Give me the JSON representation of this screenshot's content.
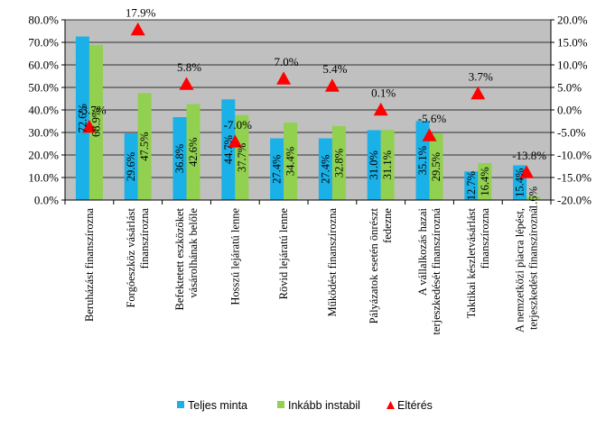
{
  "chart_data": {
    "type": "bar",
    "categories": [
      [
        "Beruházást finanszírozna"
      ],
      [
        "Forgóeszköz vásárlást",
        "finanszírozna"
      ],
      [
        "Befektetett eszközöket",
        "vásárolhának belőle"
      ],
      [
        "Hosszú lejáratú lenne"
      ],
      [
        "Rövid lejáratú lenne"
      ],
      [
        "Működést finanszírozna"
      ],
      [
        "Pályázatok esetén önrészt",
        "fedezne"
      ],
      [
        "A vállalkozás hazai",
        "terjeszkedését finanszírozná"
      ],
      [
        "Taktikai készletvásárlást",
        "finanszírozna"
      ],
      [
        "A nemzetközi piacra lépést,",
        "terjeszkedést finanszírozná"
      ]
    ],
    "series": [
      {
        "name": "Teljes minta",
        "color": "#1ab0e8",
        "axis": "left",
        "values": [
          72.6,
          29.6,
          36.8,
          44.7,
          27.4,
          27.4,
          31.0,
          35.1,
          12.7,
          15.4
        ],
        "labels": [
          "72.6%",
          "29.6%",
          "36.8%",
          "44.7%",
          "27.4%",
          "27.4%",
          "31.0%",
          "35.1%",
          "12.7%",
          "15.4%"
        ]
      },
      {
        "name": "Inkább instabil",
        "color": "#92d050",
        "axis": "left",
        "values": [
          68.9,
          47.5,
          42.6,
          37.7,
          34.4,
          32.8,
          31.1,
          29.5,
          16.4,
          1.6
        ],
        "labels": [
          "68.9%",
          "47.5%",
          "42.6%",
          "37.7%",
          "34.4%",
          "32.8%",
          "31.1%",
          "29.5%",
          "16.4%",
          "1.6%"
        ]
      },
      {
        "name": "Eltérés",
        "color": "#ff0000",
        "axis": "right",
        "marker": "triangle",
        "values": [
          -3.7,
          17.9,
          5.8,
          -7.0,
          7.0,
          5.4,
          0.1,
          -5.6,
          3.7,
          -13.8
        ],
        "labels": [
          "-3.7%",
          "17.9%",
          "5.8%",
          "-7.0%",
          "7.0%",
          "5.4%",
          "0.1%",
          "-5.6%",
          "3.7%",
          "-13.8%"
        ]
      }
    ],
    "ylim_left": [
      0,
      80
    ],
    "yticks_left": [
      "0.0%",
      "10.0%",
      "20.0%",
      "30.0%",
      "40.0%",
      "50.0%",
      "60.0%",
      "70.0%",
      "80.0%"
    ],
    "ylim_right": [
      -20,
      20
    ],
    "yticks_right": [
      "-20.0%",
      "-15.0%",
      "-10.0%",
      "-5.0%",
      "0.0%",
      "5.0%",
      "10.0%",
      "15.0%",
      "20.0%"
    ],
    "grid": true,
    "legend_position": "bottom",
    "plot_background": "#c0c0c0"
  }
}
